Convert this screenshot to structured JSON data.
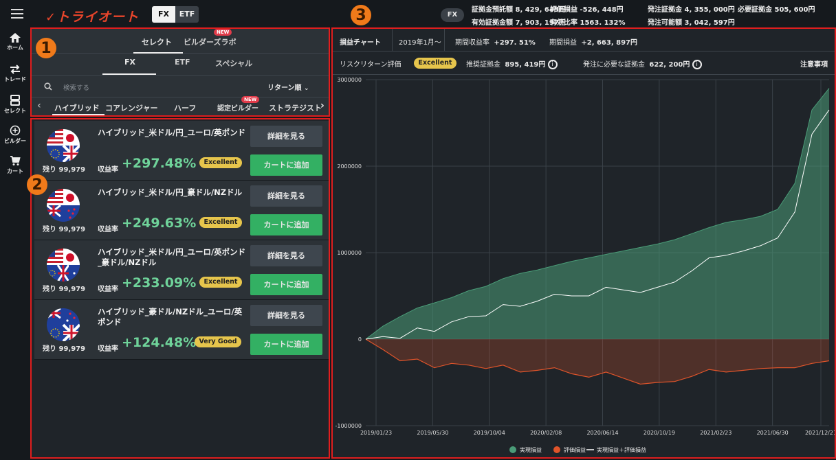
{
  "topbar": {
    "logo": "トライオート",
    "segments": [
      "FX",
      "ETF"
    ],
    "active_segment": "FX",
    "account_pill": "FX",
    "account": {
      "row1": [
        {
          "label": "証拠金預託額",
          "value": "8, 429, 645円"
        },
        {
          "label": "評価損益",
          "value": "-526, 448円"
        },
        {
          "label": "発注証拠金",
          "value": "4, 355, 000円"
        },
        {
          "label": "必要証拠金",
          "value": "505, 600円"
        }
      ],
      "row2": [
        {
          "label": "有効証拠金額",
          "value": "7, 903, 197円"
        },
        {
          "label": "有効比率",
          "value": "1563. 132%"
        },
        {
          "label": "発注可能額",
          "value": "3, 042, 597円"
        }
      ]
    }
  },
  "nav": [
    {
      "label": "ホーム",
      "icon": "home-icon"
    },
    {
      "label": "トレード",
      "icon": "trade-icon"
    },
    {
      "label": "セレクト",
      "icon": "select-icon"
    },
    {
      "label": "ビルダー",
      "icon": "builder-icon"
    },
    {
      "label": "カート",
      "icon": "cart-icon"
    }
  ],
  "badges": [
    "1",
    "2",
    "3"
  ],
  "panel1": {
    "tabs": [
      "セレクト",
      "ビルダーズラボ"
    ],
    "new_tag": "NEW",
    "subtabs": [
      "FX",
      "ETF",
      "スペシャル"
    ],
    "search_placeholder": "検索する",
    "sort_label": "リターン順",
    "categories": [
      "ハイブリッド",
      "コアレンジャー",
      "ハーフ",
      "認定ビルダー",
      "ストラテジスト"
    ]
  },
  "panel2": {
    "cards": [
      {
        "name": "ハイブリッド_米ドル/円_ユーロ/英ポンド",
        "remaining": "残り 99,979",
        "return_label": "収益率",
        "return_value": "+297.48%",
        "grade": "Excellent",
        "flag": "us-jp-eu-gb"
      },
      {
        "name": "ハイブリッド_米ドル/円_豪ドル/NZドル",
        "remaining": "残り 99,979",
        "return_label": "収益率",
        "return_value": "+249.63%",
        "grade": "Excellent",
        "flag": "us-jp-au-nz"
      },
      {
        "name": "ハイブリッド_米ドル/円_ユーロ/英ポンド_豪ドル/NZドル",
        "remaining": "残り 99,979",
        "return_label": "収益率",
        "return_value": "+233.09%",
        "grade": "Excellent",
        "flag": "us-jp-eu-gb-au"
      },
      {
        "name": "ハイブリッド_豪ドル/NZドル_ユーロ/英ポンド",
        "remaining": "残り 99,979",
        "return_label": "収益率",
        "return_value": "+124.48%",
        "grade": "Very Good",
        "flag": "au-nz-eu-gb"
      }
    ],
    "detail_button": "詳細を見る",
    "cart_button": "カートに追加"
  },
  "panel3": {
    "header": {
      "chart_tab": "損益チャート",
      "period_select": "2019年1月～",
      "period_return_label": "期間収益率",
      "period_return_value": "+297. 51%",
      "period_pl_label": "期間損益",
      "period_pl_value": "+2, 663, 897円"
    },
    "risk": {
      "label": "リスクリターン評価",
      "grade": "Excellent",
      "recommended_label": "推奨証拠金",
      "recommended_value": "895, 419円",
      "required_label": "発注に必要な証拠金",
      "required_value": "622, 200円",
      "notice": "注意事項"
    }
  },
  "colors": {
    "realized": "#4a9c78",
    "unrealized": "#e0542a",
    "total": "#ffffff",
    "accent_green": "#33b063",
    "badge_orange": "#f07a1a",
    "grade_yellow": "#e6c54c"
  },
  "chart_data": {
    "type": "area",
    "title": "",
    "xlabel": "",
    "ylabel": "",
    "x_ticks": [
      "2019/01/23",
      "2019/05/30",
      "2019/10/04",
      "2020/02/08",
      "2020/06/14",
      "2020/10/19",
      "2021/02/23",
      "2021/06/30",
      "2021/12/21"
    ],
    "y_ticks": [
      3000000,
      2000000,
      1000000,
      0,
      -1000000
    ],
    "y_tick_labels": [
      "3000000",
      "2000000",
      "1000000",
      "0",
      "-1000000"
    ],
    "ylim": [
      -1000000,
      3000000
    ],
    "grid": true,
    "legend_position": "bottom",
    "series": [
      {
        "name": "実現損益",
        "color": "#4a9c78",
        "values": [
          0,
          150000,
          260000,
          360000,
          420000,
          480000,
          560000,
          610000,
          700000,
          760000,
          800000,
          850000,
          900000,
          940000,
          980000,
          1020000,
          1060000,
          1100000,
          1150000,
          1220000,
          1290000,
          1350000,
          1380000,
          1420000,
          1500000,
          1800000,
          2650000,
          2900000
        ]
      },
      {
        "name": "評価損益",
        "color": "#e0542a",
        "values": [
          0,
          -120000,
          -250000,
          -230000,
          -330000,
          -280000,
          -300000,
          -340000,
          -300000,
          -380000,
          -360000,
          -330000,
          -400000,
          -440000,
          -380000,
          -450000,
          -520000,
          -500000,
          -490000,
          -430000,
          -350000,
          -380000,
          -360000,
          -340000,
          -330000,
          -330000,
          -280000,
          -250000
        ]
      },
      {
        "name": "実現損益＋評価損益",
        "color": "#ffffff",
        "values": [
          0,
          30000,
          10000,
          130000,
          90000,
          200000,
          260000,
          270000,
          400000,
          380000,
          440000,
          520000,
          500000,
          500000,
          600000,
          570000,
          540000,
          600000,
          660000,
          790000,
          940000,
          970000,
          1020000,
          1080000,
          1170000,
          1470000,
          2370000,
          2650000
        ]
      }
    ]
  }
}
